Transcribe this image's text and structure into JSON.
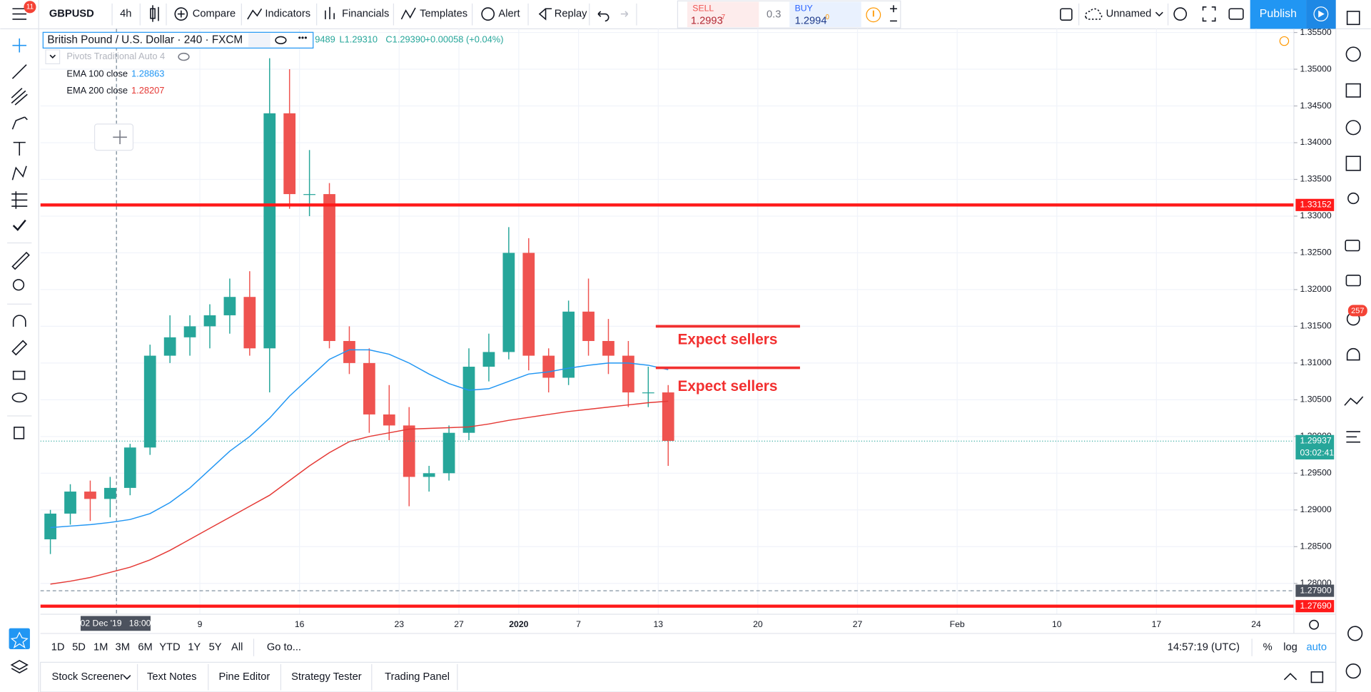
{
  "ui": {
    "badge": "11",
    "notifications": "257",
    "toolbar": {
      "symbol": "GBPUSD",
      "interval": "4h",
      "compare": "Compare",
      "indicators": "Indicators",
      "financials": "Financials",
      "templates": "Templates",
      "alert": "Alert",
      "replay": "Replay",
      "layout": "Unnamed",
      "publish": "Publish"
    },
    "trade": {
      "sell": "SELL",
      "sell_price": "1.2993",
      "sell_digit": "7",
      "spread": "0.3",
      "buy": "BUY",
      "buy_price": "1.2994",
      "buy_digit": "0"
    },
    "legend": {
      "title": "British Pound / U.S. Dollar · 240 · FXCM",
      "open": "9489",
      "low": "L1.29310",
      "close": "C1.29390",
      "change": "+0.00058 (+0.04%)",
      "pivots": "Pivots Traditional Auto 4"
    },
    "countdown": "03:02:41",
    "ranges": [
      "1D",
      "5D",
      "1M",
      "3M",
      "6M",
      "YTD",
      "1Y",
      "5Y",
      "All"
    ],
    "goto": "Go to...",
    "clock": "14:57:19 (UTC)",
    "percent": "%",
    "log": "log",
    "auto": "auto",
    "tabs": [
      "Stock Screener",
      "Text Notes",
      "Pine Editor",
      "Strategy Tester",
      "Trading Panel"
    ]
  },
  "chart_data": {
    "type": "candlestick",
    "categories": [
      null,
      null,
      null,
      null,
      null,
      null,
      null,
      null,
      "9",
      null,
      null,
      null,
      null,
      "16",
      null,
      null,
      null,
      null,
      "23",
      null,
      null,
      "27",
      null,
      null,
      "2020",
      null,
      null,
      "7",
      null,
      null,
      null,
      "13",
      null,
      null,
      null,
      null,
      "20",
      null,
      null,
      null,
      null,
      "27",
      null,
      null,
      null,
      null,
      "Feb",
      null,
      null,
      null,
      null,
      "10",
      null,
      null,
      null,
      null,
      "17",
      null,
      null,
      null,
      null,
      "24"
    ],
    "candles": {
      "up_color": "#26a69a",
      "down_color": "#ef5350",
      "open": [
        1.286,
        1.2895,
        1.2925,
        1.2915,
        1.293,
        1.2985,
        1.311,
        1.3135,
        1.315,
        1.3165,
        1.319,
        1.312,
        1.344,
        1.333,
        1.333,
        1.313,
        1.31,
        1.303,
        1.3015,
        1.2945,
        1.295,
        1.3005,
        1.3095,
        1.3115,
        1.325,
        1.311,
        1.308,
        1.317,
        1.313,
        1.311,
        1.306,
        1.306,
        null,
        null,
        null,
        null,
        null,
        null,
        null,
        null,
        null,
        null,
        null,
        null,
        null,
        null,
        null,
        null,
        null,
        null,
        null,
        null,
        null,
        null,
        null,
        null,
        null,
        null,
        null,
        null,
        null,
        null
      ],
      "high": [
        1.29,
        1.2935,
        1.294,
        1.2945,
        1.299,
        1.3125,
        1.3165,
        1.3165,
        1.318,
        1.3215,
        1.3225,
        1.3515,
        1.35,
        1.339,
        1.3345,
        1.315,
        1.312,
        1.307,
        1.304,
        1.296,
        1.3015,
        1.312,
        1.314,
        1.3285,
        1.327,
        1.312,
        1.3185,
        1.3215,
        1.316,
        1.313,
        1.3095,
        1.307,
        null,
        null,
        null,
        null,
        null,
        null,
        null,
        null,
        null,
        null,
        null,
        null,
        null,
        null,
        null,
        null,
        null,
        null,
        null,
        null,
        null,
        null,
        null,
        null,
        null,
        null,
        null,
        null,
        null,
        null
      ],
      "low": [
        1.284,
        1.288,
        1.2885,
        1.289,
        1.292,
        1.2975,
        1.31,
        1.311,
        1.312,
        1.314,
        1.311,
        1.306,
        1.331,
        1.33,
        1.312,
        1.3085,
        1.3005,
        1.2995,
        1.2905,
        1.2925,
        1.294,
        1.2995,
        1.3075,
        1.3105,
        1.309,
        1.306,
        1.307,
        1.311,
        1.3085,
        1.304,
        1.304,
        1.296,
        null,
        null,
        null,
        null,
        null,
        null,
        null,
        null,
        null,
        null,
        null,
        null,
        null,
        null,
        null,
        null,
        null,
        null,
        null,
        null,
        null,
        null,
        null,
        null,
        null,
        null,
        null,
        null,
        null,
        null
      ],
      "close": [
        1.2895,
        1.2925,
        1.2915,
        1.293,
        1.2985,
        1.311,
        1.3135,
        1.315,
        1.3165,
        1.319,
        1.312,
        1.344,
        1.333,
        1.333,
        1.313,
        1.31,
        1.303,
        1.3015,
        1.2945,
        1.295,
        1.3005,
        1.3095,
        1.3115,
        1.325,
        1.311,
        1.308,
        1.317,
        1.313,
        1.311,
        1.306,
        1.306,
        1.2994,
        null,
        null,
        null,
        null,
        null,
        null,
        null,
        null,
        null,
        null,
        null,
        null,
        null,
        null,
        null,
        null,
        null,
        null,
        null,
        null,
        null,
        null,
        null,
        null,
        null,
        null,
        null,
        null,
        null,
        null
      ]
    },
    "series": [
      {
        "name": "EMA 100 close",
        "legend_value": 1.28863,
        "color": "#2196f3",
        "values": [
          1.2876,
          1.2878,
          1.288,
          1.2883,
          1.2887,
          1.2895,
          1.291,
          1.293,
          1.2955,
          1.298,
          1.3,
          1.3025,
          1.3055,
          1.308,
          1.3105,
          1.3118,
          1.3118,
          1.3112,
          1.31,
          1.3085,
          1.3072,
          1.3063,
          1.3065,
          1.3075,
          1.3085,
          1.3088,
          1.3093,
          1.3097,
          1.31,
          1.31,
          1.3097,
          1.3091,
          null,
          null,
          null,
          null,
          null,
          null,
          null,
          null,
          null,
          null,
          null,
          null,
          null,
          null,
          null,
          null,
          null,
          null,
          null,
          null,
          null,
          null,
          null,
          null,
          null,
          null,
          null,
          null,
          null,
          null
        ]
      },
      {
        "name": "EMA 200 close",
        "legend_value": 1.28207,
        "color": "#e53935",
        "values": [
          1.2799,
          1.2803,
          1.2808,
          1.2815,
          1.2822,
          1.2832,
          1.2845,
          1.286,
          1.2875,
          1.289,
          1.2905,
          1.292,
          1.294,
          1.296,
          1.2978,
          1.2993,
          1.3,
          1.3005,
          1.301,
          1.3011,
          1.3012,
          1.3013,
          1.3017,
          1.3022,
          1.3026,
          1.303,
          1.3034,
          1.3037,
          1.304,
          1.3043,
          1.3046,
          1.3048,
          null,
          null,
          null,
          null,
          null,
          null,
          null,
          null,
          null,
          null,
          null,
          null,
          null,
          null,
          null,
          null,
          null,
          null,
          null,
          null,
          null,
          null,
          null,
          null,
          null,
          null,
          null,
          null,
          null,
          null
        ]
      }
    ],
    "ylim": [
      1.2758,
      1.3555
    ],
    "yticks": [
      {
        "value": 1.28,
        "label": "1.28000"
      },
      {
        "value": 1.285,
        "label": "1.28500"
      },
      {
        "value": 1.29,
        "label": "1.29000"
      },
      {
        "value": 1.295,
        "label": "1.29500"
      },
      {
        "value": 1.3,
        "label": "1.30000"
      },
      {
        "value": 1.305,
        "label": "1.30500"
      },
      {
        "value": 1.31,
        "label": "1.31000"
      },
      {
        "value": 1.315,
        "label": "1.31500"
      },
      {
        "value": 1.32,
        "label": "1.32000"
      },
      {
        "value": 1.325,
        "label": "1.32500"
      },
      {
        "value": 1.33,
        "label": "1.33000"
      },
      {
        "value": 1.335,
        "label": "1.33500"
      },
      {
        "value": 1.34,
        "label": "1.34000"
      },
      {
        "value": 1.345,
        "label": "1.34500"
      },
      {
        "value": 1.35,
        "label": "1.35000"
      },
      {
        "value": 1.355,
        "label": "1.35500"
      }
    ],
    "grid": true,
    "levels": [
      {
        "value": 1.33152,
        "color": "#ff1a1a"
      },
      {
        "value": 1.2769,
        "label": "1.27690",
        "color": "#ff1a1a"
      }
    ],
    "last_price": {
      "value": 1.29937,
      "color": "#26a69a"
    },
    "crosshair": {
      "price": {
        "value": 1.279,
        "label": "1.27900"
      },
      "time": "02 Dec '19   18:00"
    },
    "annotations": [
      {
        "text": "Expect sellers",
        "value": 1.315,
        "color": "#f23030"
      },
      {
        "text": "Expect sellers",
        "value": 1.30935,
        "color": "#f23030"
      }
    ]
  }
}
